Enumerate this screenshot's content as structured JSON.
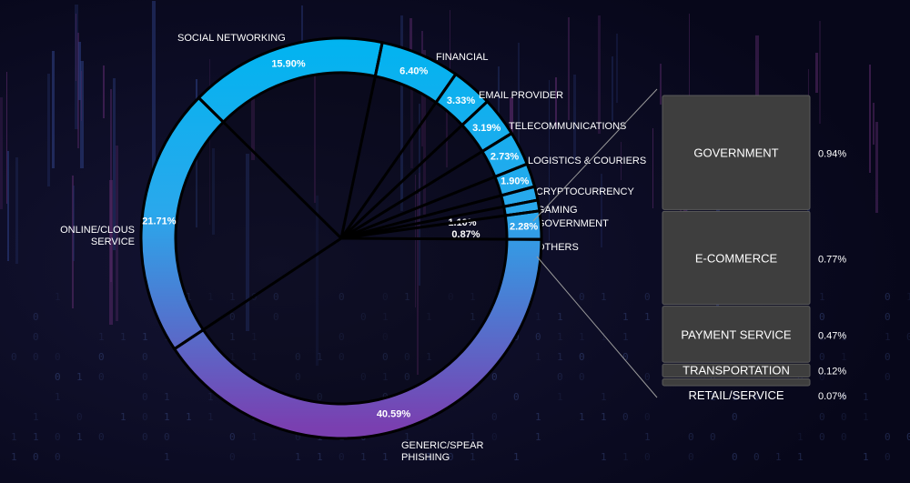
{
  "colors": {
    "background": "#0a0a1e",
    "donut_top": "#00b4f0",
    "donut_bottom": "#7a3fb0",
    "bar_fill": "#3e3e3e",
    "text": "#ffffff",
    "connector": "#9a9a9a"
  },
  "chart_data": [
    {
      "type": "pie",
      "donut": true,
      "categories": [
        "SOCIAL NETWORKING",
        "FINANCIAL",
        "EMAIL PROVIDER",
        "TELECOMMUNICATIONS",
        "LOGISTICS & COURIERS",
        "CRYPTOCURRENCY",
        "GAMING",
        "GOVERNMENT",
        "OTHERS",
        "GENERIC/SPEAR PHISHING",
        "ONLINE/CLOUS SERVICE"
      ],
      "values": [
        15.9,
        6.4,
        3.33,
        3.19,
        2.73,
        1.9,
        1.1,
        0.87,
        2.28,
        40.59,
        21.71
      ],
      "value_labels": [
        "15.90%",
        "6.40%",
        "3.33%",
        "3.19%",
        "2.73%",
        "1.90%",
        "1.10%",
        "0.87%",
        "2.28%",
        "40.59%",
        "21.71%"
      ],
      "legend": "none"
    },
    {
      "type": "bar",
      "stacked": true,
      "orientation": "vertical",
      "categories": [
        "GOVERNMENT",
        "E-COMMERCE",
        "PAYMENT SERVICE",
        "TRANSPORTATION",
        "RETAIL/SERVICE"
      ],
      "values": [
        0.94,
        0.77,
        0.47,
        0.12,
        0.07
      ],
      "value_labels": [
        "0.94%",
        "0.77%",
        "0.47%",
        "0.12%",
        "0.07%"
      ]
    }
  ]
}
